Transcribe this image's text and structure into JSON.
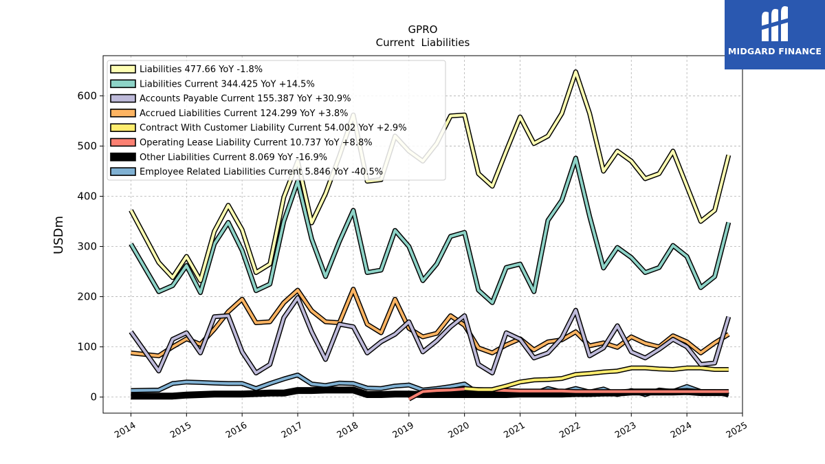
{
  "chart_data": {
    "type": "line",
    "title": "GPRO",
    "subtitle": "Current  Liabilities",
    "ylabel": "USDm",
    "xlabel": "",
    "xlim": [
      2013.5,
      2025.0
    ],
    "ylim": [
      -32,
      680
    ],
    "x_ticks": [
      2014,
      2015,
      2016,
      2017,
      2018,
      2019,
      2020,
      2021,
      2022,
      2023,
      2024,
      2025
    ],
    "y_ticks": [
      0,
      100,
      200,
      300,
      400,
      500,
      600
    ],
    "grid": true,
    "legend_position": "top-left",
    "series": [
      {
        "name": "Liabilities",
        "legend_label": "Liabilities  477.66 YoY -1.8%",
        "color": "#ffffb3",
        "x": [
          2014.0,
          2014.5,
          2014.75,
          2015.0,
          2015.25,
          2015.5,
          2015.75,
          2016.0,
          2016.25,
          2016.5,
          2016.75,
          2017.0,
          2017.25,
          2017.5,
          2017.75,
          2018.0,
          2018.25,
          2018.5,
          2018.75,
          2019.0,
          2019.25,
          2019.5,
          2019.75,
          2020.0,
          2020.25,
          2020.5,
          2020.75,
          2021.0,
          2021.25,
          2021.5,
          2021.75,
          2022.0,
          2022.25,
          2022.5,
          2022.75,
          2023.0,
          2023.25,
          2023.5,
          2023.75,
          2024.0,
          2024.25,
          2024.5,
          2024.75
        ],
        "values": [
          372,
          268,
          238,
          280,
          232,
          330,
          382,
          333,
          248,
          265,
          398,
          470,
          347,
          405,
          480,
          562,
          430,
          433,
          520,
          490,
          470,
          505,
          560,
          562,
          445,
          420,
          490,
          558,
          505,
          520,
          565,
          648,
          565,
          450,
          490,
          470,
          435,
          445,
          490,
          420,
          350,
          372,
          482
        ]
      },
      {
        "name": "Liabilities Current",
        "legend_label": "Liabilities Current  344.425 YoY +14.5%",
        "color": "#8dd3c7",
        "x": [
          2014.0,
          2014.5,
          2014.75,
          2015.0,
          2015.25,
          2015.5,
          2015.75,
          2016.0,
          2016.25,
          2016.5,
          2016.75,
          2017.0,
          2017.25,
          2017.5,
          2017.75,
          2018.0,
          2018.25,
          2018.5,
          2018.75,
          2019.0,
          2019.25,
          2019.5,
          2019.75,
          2020.0,
          2020.25,
          2020.5,
          2020.75,
          2021.0,
          2021.25,
          2021.5,
          2021.75,
          2022.0,
          2022.25,
          2022.5,
          2022.75,
          2023.0,
          2023.25,
          2023.5,
          2023.75,
          2024.0,
          2024.25,
          2024.5,
          2024.75
        ],
        "values": [
          305,
          210,
          222,
          262,
          208,
          305,
          348,
          292,
          212,
          225,
          350,
          430,
          315,
          240,
          310,
          372,
          248,
          253,
          332,
          300,
          232,
          265,
          320,
          328,
          213,
          188,
          258,
          265,
          210,
          352,
          392,
          476,
          360,
          257,
          298,
          278,
          248,
          258,
          302,
          280,
          218,
          240,
          348
        ]
      },
      {
        "name": "Accounts Payable Current",
        "legend_label": "Accounts Payable Current  155.387 YoY +30.9%",
        "color": "#bebada",
        "x": [
          2014.0,
          2014.5,
          2014.75,
          2015.0,
          2015.25,
          2015.5,
          2015.75,
          2016.0,
          2016.25,
          2016.5,
          2016.75,
          2017.0,
          2017.25,
          2017.5,
          2017.75,
          2018.0,
          2018.25,
          2018.5,
          2018.75,
          2019.0,
          2019.25,
          2019.5,
          2019.75,
          2020.0,
          2020.25,
          2020.5,
          2020.75,
          2021.0,
          2021.25,
          2021.5,
          2021.75,
          2022.0,
          2022.25,
          2022.5,
          2022.75,
          2023.0,
          2023.25,
          2023.5,
          2023.75,
          2024.0,
          2024.25,
          2024.5,
          2024.75
        ],
        "values": [
          130,
          52,
          115,
          128,
          88,
          160,
          162,
          90,
          48,
          65,
          158,
          198,
          130,
          75,
          145,
          140,
          88,
          110,
          125,
          150,
          90,
          112,
          140,
          162,
          65,
          48,
          128,
          115,
          78,
          88,
          118,
          173,
          82,
          98,
          142,
          90,
          78,
          95,
          115,
          100,
          65,
          68,
          160
        ]
      },
      {
        "name": "Accrued Liabilities Current",
        "legend_label": "Accrued Liabilities Current  124.299 YoY +3.8%",
        "color": "#fdb462",
        "x": [
          2014.0,
          2014.5,
          2014.75,
          2015.0,
          2015.25,
          2015.5,
          2015.75,
          2016.0,
          2016.25,
          2016.5,
          2016.75,
          2017.0,
          2017.25,
          2017.5,
          2017.75,
          2018.0,
          2018.25,
          2018.5,
          2018.75,
          2019.0,
          2019.25,
          2019.5,
          2019.75,
          2020.0,
          2020.25,
          2020.5,
          2020.75,
          2021.0,
          2021.25,
          2021.5,
          2021.75,
          2022.0,
          2022.25,
          2022.5,
          2022.75,
          2023.0,
          2023.25,
          2023.5,
          2023.75,
          2024.0,
          2024.25,
          2024.5,
          2024.75
        ],
        "values": [
          88,
          82,
          100,
          116,
          105,
          135,
          170,
          195,
          148,
          150,
          188,
          213,
          172,
          150,
          148,
          215,
          145,
          128,
          195,
          137,
          120,
          127,
          162,
          143,
          98,
          88,
          104,
          116,
          94,
          110,
          114,
          130,
          102,
          108,
          99,
          120,
          107,
          100,
          122,
          110,
          88,
          108,
          125
        ]
      },
      {
        "name": "Contract With Customer Liability Current",
        "legend_label": "Contract With Customer Liability Current  54.002 YoY +2.9%",
        "color": "#ffed6f",
        "x": [
          2020.0,
          2020.25,
          2020.5,
          2020.75,
          2021.0,
          2021.25,
          2021.5,
          2021.75,
          2022.0,
          2022.25,
          2022.5,
          2022.75,
          2023.0,
          2023.25,
          2023.5,
          2023.75,
          2024.0,
          2024.25,
          2024.5,
          2024.75
        ],
        "values": [
          17,
          15,
          15,
          22,
          30,
          34,
          35,
          37,
          45,
          47,
          50,
          52,
          58,
          58,
          56,
          55,
          58,
          58,
          55,
          55
        ]
      },
      {
        "name": "Operating Lease Liability Current",
        "legend_label": "Operating Lease Liability Current  10.737 YoY +8.8%",
        "color": "#fb8072",
        "x": [
          2019.0,
          2019.25,
          2019.5,
          2019.75,
          2020.0,
          2020.25,
          2020.5,
          2020.75,
          2021.0,
          2021.25,
          2021.5,
          2021.75,
          2022.0,
          2022.25,
          2022.5,
          2022.75,
          2023.0,
          2023.25,
          2023.5,
          2023.75,
          2024.0,
          2024.25,
          2024.5,
          2024.75
        ],
        "values": [
          -4,
          11,
          13,
          14,
          16,
          15,
          14,
          13,
          12,
          12,
          12,
          12,
          11,
          11,
          11,
          11,
          11,
          11,
          11,
          11,
          11,
          11,
          11,
          11
        ]
      },
      {
        "name": "Other Liabilities Current",
        "legend_label": "Other Liabilities Current  8.069 YoY -16.9%",
        "color": "#000000",
        "x": [
          2014.0,
          2014.5,
          2014.75,
          2015.0,
          2015.25,
          2015.5,
          2015.75,
          2016.0,
          2016.25,
          2016.5,
          2016.75,
          2017.0,
          2017.25,
          2017.5,
          2017.75,
          2018.0,
          2018.25,
          2018.5,
          2018.75,
          2019.0,
          2019.25,
          2019.5,
          2019.75,
          2020.0,
          2020.25,
          2020.5,
          2020.75,
          2021.0,
          2021.25,
          2021.5,
          2021.75,
          2022.0,
          2022.25,
          2022.5,
          2022.75,
          2023.0,
          2023.25,
          2023.5,
          2023.75,
          2024.0,
          2024.25,
          2024.5,
          2024.75
        ],
        "values": [
          2,
          2,
          2,
          4,
          5,
          6,
          6,
          6,
          7,
          8,
          8,
          13,
          13,
          14,
          14,
          14,
          5,
          5,
          6,
          6,
          5,
          5,
          5,
          5,
          5,
          5,
          5,
          6,
          6,
          6,
          6,
          7,
          7,
          8,
          8,
          10,
          10,
          10,
          10,
          11,
          9,
          9,
          9
        ]
      },
      {
        "name": "Employee Related Liabilities Current",
        "legend_label": "Employee Related Liabilities Current  5.846 YoY -40.5%",
        "color": "#80b1d3",
        "x": [
          2014.0,
          2014.5,
          2014.75,
          2015.0,
          2015.25,
          2015.5,
          2015.75,
          2016.0,
          2016.25,
          2016.5,
          2016.75,
          2017.0,
          2017.25,
          2017.5,
          2017.75,
          2018.0,
          2018.25,
          2018.5,
          2018.75,
          2019.0,
          2019.25,
          2019.5,
          2019.75,
          2020.0,
          2020.25,
          2020.5,
          2020.75,
          2021.0,
          2021.25,
          2021.5,
          2021.75,
          2022.0,
          2022.25,
          2022.5,
          2022.75,
          2023.0,
          2023.25,
          2023.5,
          2023.75,
          2024.0,
          2024.25,
          2024.5,
          2024.75
        ],
        "values": [
          13,
          14,
          27,
          30,
          29,
          28,
          27,
          27,
          17,
          27,
          36,
          44,
          26,
          23,
          28,
          27,
          18,
          17,
          22,
          24,
          14,
          17,
          21,
          26,
          7,
          6,
          5,
          6,
          7,
          17,
          10,
          17,
          10,
          16,
          5,
          13,
          5,
          14,
          11,
          21,
          11,
          11,
          4
        ]
      }
    ]
  },
  "logo": {
    "text": "MIDGARD FINANCE",
    "bg_color": "#2a58b0",
    "icon": "midgard-m-icon"
  }
}
